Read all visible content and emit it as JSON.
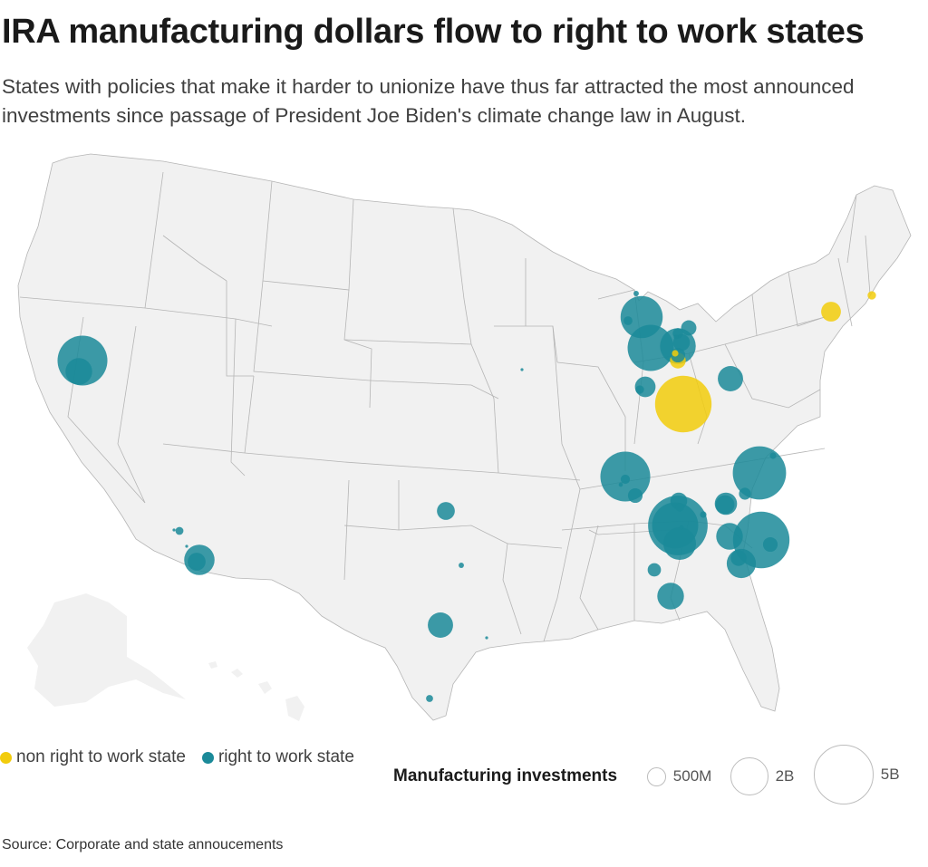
{
  "title": "IRA manufacturing dollars flow to right to work states",
  "subtitle": "States with policies that make it harder to unionize have thus far attracted the most announced investments since passage of President Joe Biden's climate change law in August.",
  "source": "Source: Corporate and state annoucements",
  "legend": {
    "categories": [
      {
        "label": "non right to work state",
        "color": "#f2cc0c"
      },
      {
        "label": "right to work state",
        "color": "#1b8a99"
      }
    ],
    "size_title": "Manufacturing investments",
    "sizes": [
      {
        "label": "500M",
        "value": 500
      },
      {
        "label": "2B",
        "value": 2000
      },
      {
        "label": "5B",
        "value": 5000
      }
    ]
  },
  "colors": {
    "land": "#f1f1f1",
    "border": "#b5b5b5",
    "non_rtw": "#f2cc0c",
    "rtw": "#1b8a99"
  },
  "map_data": {
    "units": "million USD",
    "points": [
      {
        "place": "Nevada (Reno)",
        "type": "rtw",
        "value": 3500
      },
      {
        "place": "Nevada (Reno) 2",
        "type": "rtw",
        "value": 1000
      },
      {
        "place": "Arizona (Phoenix)",
        "type": "rtw",
        "value": 1300
      },
      {
        "place": "Arizona (Phoenix) 2",
        "type": "rtw",
        "value": 450
      },
      {
        "place": "Arizona (Yuma)",
        "type": "rtw",
        "value": 90
      },
      {
        "place": "Arizona (Yuma) 2",
        "type": "rtw",
        "value": 10
      },
      {
        "place": "Arizona 3",
        "type": "rtw",
        "value": 10
      },
      {
        "place": "Oklahoma",
        "type": "rtw",
        "value": 450
      },
      {
        "place": "Texas (Dallas area)",
        "type": "rtw",
        "value": 40
      },
      {
        "place": "Texas (Austin)",
        "type": "rtw",
        "value": 900
      },
      {
        "place": "Texas (Houston)",
        "type": "rtw",
        "value": 10
      },
      {
        "place": "Texas (South)",
        "type": "rtw",
        "value": 70
      },
      {
        "place": "Iowa",
        "type": "rtw",
        "value": 10
      },
      {
        "place": "Michigan (North)",
        "type": "rtw",
        "value": 2500
      },
      {
        "place": "Michigan (North) 2",
        "type": "rtw",
        "value": 110
      },
      {
        "place": "Michigan (Traverse)",
        "type": "rtw",
        "value": 40
      },
      {
        "place": "Michigan (Lansing)",
        "type": "rtw",
        "value": 3000
      },
      {
        "place": "Michigan (Detroit)",
        "type": "rtw",
        "value": 1800
      },
      {
        "place": "Michigan (Detroit) 2",
        "type": "rtw",
        "value": 400
      },
      {
        "place": "Michigan (East)",
        "type": "rtw",
        "value": 330
      },
      {
        "place": "Michigan (Detroit) 3",
        "type": "rtw",
        "value": 150
      },
      {
        "place": "Michigan (Detroit) 4",
        "type": "rtw",
        "value": 30
      },
      {
        "place": "Michigan (South)",
        "type": "rtw",
        "value": 300
      },
      {
        "place": "Ohio (Toledo)",
        "type": "non_rtw",
        "value": 350
      },
      {
        "place": "Ohio (Toledo) 2",
        "type": "non_rtw",
        "value": 60
      },
      {
        "place": "Ohio (Columbus)",
        "type": "non_rtw",
        "value": 4500
      },
      {
        "place": "Indiana",
        "type": "rtw",
        "value": 600
      },
      {
        "place": "Indiana 2",
        "type": "rtw",
        "value": 100
      },
      {
        "place": "Pennsylvania",
        "type": "rtw",
        "value": 900
      },
      {
        "place": "New York (Hudson)",
        "type": "non_rtw",
        "value": 550
      },
      {
        "place": "Massachusetts",
        "type": "non_rtw",
        "value": 100
      },
      {
        "place": "Kentucky",
        "type": "rtw",
        "value": 3500
      },
      {
        "place": "Kentucky 2",
        "type": "rtw",
        "value": 300
      },
      {
        "place": "Kentucky 3",
        "type": "rtw",
        "value": 120
      },
      {
        "place": "Kentucky 4",
        "type": "rtw",
        "value": 25
      },
      {
        "place": "North Carolina",
        "type": "rtw",
        "value": 4000
      },
      {
        "place": "North Carolina 2",
        "type": "rtw",
        "value": 60
      },
      {
        "place": "North Carolina 3",
        "type": "rtw",
        "value": 200
      },
      {
        "place": "Tennessee (Chattanooga)",
        "type": "rtw",
        "value": 5000
      },
      {
        "place": "Tennessee 2",
        "type": "rtw",
        "value": 3000
      },
      {
        "place": "Tennessee 3",
        "type": "rtw",
        "value": 1500
      },
      {
        "place": "Tennessee 4",
        "type": "rtw",
        "value": 700
      },
      {
        "place": "Tennessee 5",
        "type": "rtw",
        "value": 400
      },
      {
        "place": "Tennessee 6",
        "type": "rtw",
        "value": 60
      },
      {
        "place": "Georgia (North)",
        "type": "rtw",
        "value": 1000
      },
      {
        "place": "Georgia (North) 2",
        "type": "rtw",
        "value": 500
      },
      {
        "place": "Georgia 3",
        "type": "rtw",
        "value": 100
      },
      {
        "place": "Georgia 4",
        "type": "rtw",
        "value": 25
      },
      {
        "place": "South Carolina",
        "type": "rtw",
        "value": 4500
      },
      {
        "place": "South Carolina 2",
        "type": "rtw",
        "value": 300
      },
      {
        "place": "South Carolina 3",
        "type": "rtw",
        "value": 1200
      },
      {
        "place": "South Carolina 4",
        "type": "rtw",
        "value": 350
      },
      {
        "place": "Georgia (Atlanta)",
        "type": "rtw",
        "value": 1000
      },
      {
        "place": "Alabama",
        "type": "rtw",
        "value": 250
      }
    ]
  }
}
